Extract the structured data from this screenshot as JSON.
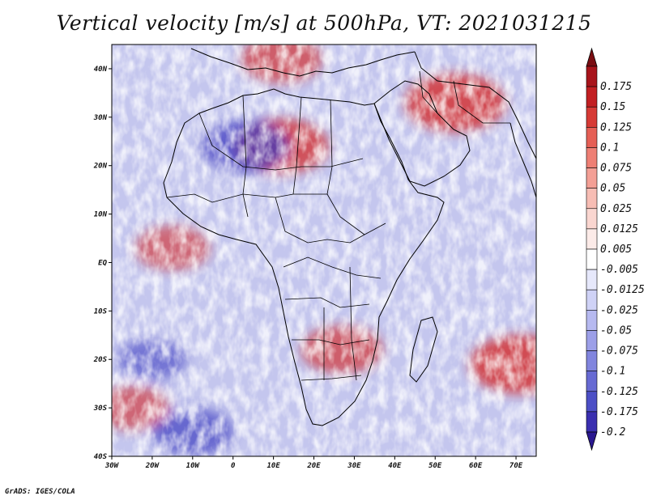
{
  "title": "Vertical velocity [m/s] at 500hPa, VT: 2021031215",
  "footer": "GrADS: IGES/COLA",
  "map": {
    "lon_range": [
      -30,
      75
    ],
    "lat_range": [
      -40,
      45
    ],
    "lon_ticks": [
      {
        "value": -30,
        "label": "30W"
      },
      {
        "value": -20,
        "label": "20W"
      },
      {
        "value": -10,
        "label": "10W"
      },
      {
        "value": 0,
        "label": "0"
      },
      {
        "value": 10,
        "label": "10E"
      },
      {
        "value": 20,
        "label": "20E"
      },
      {
        "value": 30,
        "label": "30E"
      },
      {
        "value": 40,
        "label": "40E"
      },
      {
        "value": 50,
        "label": "50E"
      },
      {
        "value": 60,
        "label": "60E"
      },
      {
        "value": 70,
        "label": "70E"
      }
    ],
    "lat_ticks": [
      {
        "value": 40,
        "label": "40N"
      },
      {
        "value": 30,
        "label": "30N"
      },
      {
        "value": 20,
        "label": "20N"
      },
      {
        "value": 10,
        "label": "10N"
      },
      {
        "value": 0,
        "label": "EQ"
      },
      {
        "value": -10,
        "label": "10S"
      },
      {
        "value": -20,
        "label": "20S"
      },
      {
        "value": -30,
        "label": "30S"
      },
      {
        "value": -40,
        "label": "40S"
      }
    ]
  },
  "colorbar": {
    "max_color": "#7a0d12",
    "min_color": "#2a1890",
    "bins": [
      {
        "label": "0.175",
        "color": "#a8141b"
      },
      {
        "label": "0.15",
        "color": "#c21f22"
      },
      {
        "label": "0.125",
        "color": "#d63a35"
      },
      {
        "label": "0.1",
        "color": "#e55f55"
      },
      {
        "label": "0.075",
        "color": "#ee7f74"
      },
      {
        "label": "0.05",
        "color": "#f39f95"
      },
      {
        "label": "0.025",
        "color": "#f7bdb4"
      },
      {
        "label": "0.0125",
        "color": "#fad6d0"
      },
      {
        "label": "0.005",
        "color": "#fcebe8"
      },
      {
        "label": "-0.005",
        "color": "#ffffff"
      },
      {
        "label": "-0.0125",
        "color": "#e6e8fb"
      },
      {
        "label": "-0.025",
        "color": "#cfd2f6"
      },
      {
        "label": "-0.05",
        "color": "#b6b9f0"
      },
      {
        "label": "-0.075",
        "color": "#9c9fe8"
      },
      {
        "label": "-0.1",
        "color": "#8185de"
      },
      {
        "label": "-0.125",
        "color": "#676ad3"
      },
      {
        "label": "-0.175",
        "color": "#4c4fc6"
      },
      {
        "label": "-0.2",
        "color": "#3a2fb0"
      }
    ]
  },
  "field_features": [
    {
      "name": "iran-afghanistan-ascent",
      "lon": 55,
      "lat": 33,
      "sign": "up",
      "strength": 1.0
    },
    {
      "name": "sahara-ascent",
      "lon": 12,
      "lat": 24,
      "sign": "up",
      "strength": 0.9
    },
    {
      "name": "mediterranean-ascent",
      "lon": 12,
      "lat": 42,
      "sign": "up",
      "strength": 0.7
    },
    {
      "name": "itcz-band",
      "lon": -15,
      "lat": 3,
      "sign": "up",
      "strength": 0.6
    },
    {
      "name": "southern-africa-convection",
      "lon": 27,
      "lat": -18,
      "sign": "up",
      "strength": 0.7
    },
    {
      "name": "cyclone-indian-ocean",
      "lon": 71,
      "lat": -21,
      "sign": "up",
      "strength": 1.0
    },
    {
      "name": "west-sahara-descent",
      "lon": 3,
      "lat": 24,
      "sign": "down",
      "strength": 0.8
    },
    {
      "name": "atlantic-descent",
      "lon": -20,
      "lat": -20,
      "sign": "down",
      "strength": 0.5
    },
    {
      "name": "south-atlantic-swirl",
      "lon": -10,
      "lat": -35,
      "sign": "down",
      "strength": 0.7
    },
    {
      "name": "southern-ocean-ascent",
      "lon": -25,
      "lat": -30,
      "sign": "up",
      "strength": 0.6
    }
  ]
}
